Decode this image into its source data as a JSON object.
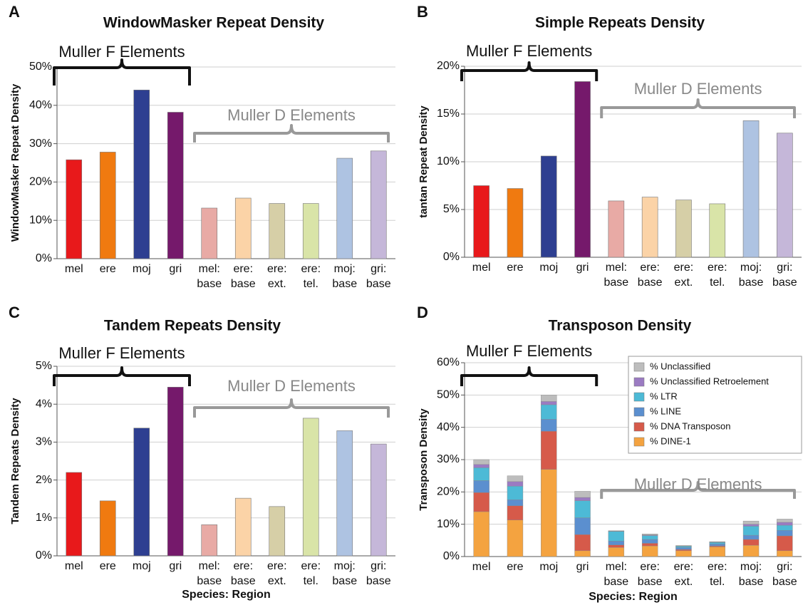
{
  "chart_data": [
    {
      "type": "bar",
      "label": "A",
      "title": "WindowMasker Repeat Density",
      "ylabel": "WindowMasker Repeat Density",
      "annotations": [
        "Muller F Elements",
        "Muller D Elements"
      ],
      "categories": [
        [
          "mel"
        ],
        [
          "ere"
        ],
        [
          "moj"
        ],
        [
          "gri"
        ],
        [
          "mel:",
          "base"
        ],
        [
          "ere:",
          "base"
        ],
        [
          "ere:",
          "ext."
        ],
        [
          "ere:",
          "tel."
        ],
        [
          "moj:",
          "base"
        ],
        [
          "gri:",
          "base"
        ]
      ],
      "values": [
        25.8,
        27.8,
        44,
        38.2,
        13.2,
        15.8,
        14.4,
        14.4,
        26.2,
        28.1
      ],
      "colors": [
        "#e8191b",
        "#f07a10",
        "#2e3f91",
        "#75196b",
        "#e8aaa5",
        "#fbd3a7",
        "#d6cfa7",
        "#d9e4a8",
        "#aec3e2",
        "#c5b7d9"
      ],
      "ylim": [
        0,
        50
      ],
      "yticks": [
        {
          "value": 0,
          "label": "0%"
        },
        {
          "value": 10,
          "label": "10%"
        },
        {
          "value": 20,
          "label": "20%"
        },
        {
          "value": 30,
          "label": "30%"
        },
        {
          "value": 40,
          "label": "40%"
        },
        {
          "value": 50,
          "label": "50%"
        }
      ],
      "grid": true
    },
    {
      "type": "bar",
      "label": "B",
      "title": "Simple Repeats Density",
      "ylabel": "tantan Repeat Density",
      "annotations": [
        "Muller F Elements",
        "Muller D Elements"
      ],
      "categories": [
        [
          "mel"
        ],
        [
          "ere"
        ],
        [
          "moj"
        ],
        [
          "gri"
        ],
        [
          "mel:",
          "base"
        ],
        [
          "ere:",
          "base"
        ],
        [
          "ere:",
          "ext."
        ],
        [
          "ere:",
          "tel."
        ],
        [
          "moj:",
          "base"
        ],
        [
          "gri:",
          "base"
        ]
      ],
      "values": [
        7.5,
        7.2,
        10.6,
        18.4,
        5.9,
        6.3,
        6.0,
        5.6,
        14.3,
        13.0
      ],
      "colors": [
        "#e8191b",
        "#f07a10",
        "#2e3f91",
        "#75196b",
        "#e8aaa5",
        "#fbd3a7",
        "#d6cfa7",
        "#d9e4a8",
        "#aec3e2",
        "#c5b7d9"
      ],
      "ylim": [
        0,
        20
      ],
      "yticks": [
        {
          "value": 0,
          "label": "0%"
        },
        {
          "value": 5,
          "label": "5%"
        },
        {
          "value": 10,
          "label": "10%"
        },
        {
          "value": 15,
          "label": "15%"
        },
        {
          "value": 20,
          "label": "20%"
        }
      ],
      "grid": true
    },
    {
      "type": "bar",
      "label": "C",
      "title": "Tandem Repeats Density",
      "ylabel": "Tandem Repeats Density",
      "xlabel": "Species: Region",
      "annotations": [
        "Muller F Elements",
        "Muller D Elements"
      ],
      "categories": [
        [
          "mel"
        ],
        [
          "ere"
        ],
        [
          "moj"
        ],
        [
          "gri"
        ],
        [
          "mel:",
          "base"
        ],
        [
          "ere:",
          "base"
        ],
        [
          "ere:",
          "ext."
        ],
        [
          "ere:",
          "tel."
        ],
        [
          "moj:",
          "base"
        ],
        [
          "gri:",
          "base"
        ]
      ],
      "values": [
        2.2,
        1.45,
        3.37,
        4.45,
        0.82,
        1.52,
        1.3,
        3.63,
        3.3,
        2.95
      ],
      "colors": [
        "#e8191b",
        "#f07a10",
        "#2e3f91",
        "#75196b",
        "#e8aaa5",
        "#fbd3a7",
        "#d6cfa7",
        "#d9e4a8",
        "#aec3e2",
        "#c5b7d9"
      ],
      "ylim": [
        0,
        5
      ],
      "yticks": [
        {
          "value": 0,
          "label": "0%"
        },
        {
          "value": 1,
          "label": "1%"
        },
        {
          "value": 2,
          "label": "2%"
        },
        {
          "value": 3,
          "label": "3%"
        },
        {
          "value": 4,
          "label": "4%"
        },
        {
          "value": 5,
          "label": "5%"
        }
      ],
      "grid": true
    },
    {
      "type": "stacked_bar",
      "label": "D",
      "title": "Transposon Density",
      "ylabel": "Transposon Density",
      "xlabel": "Species: Region",
      "annotations": [
        "Muller F Elements",
        "Muller D Elements"
      ],
      "categories": [
        [
          "mel"
        ],
        [
          "ere"
        ],
        [
          "moj"
        ],
        [
          "gri"
        ],
        [
          "mel:",
          "base"
        ],
        [
          "ere:",
          "base"
        ],
        [
          "ere:",
          "ext."
        ],
        [
          "ere:",
          "tel."
        ],
        [
          "moj:",
          "base"
        ],
        [
          "gri:",
          "base"
        ]
      ],
      "series": [
        {
          "name": "% DINE-1",
          "color": "#f4a340",
          "values": [
            13.9,
            11.3,
            27,
            1.8,
            2.8,
            3.3,
            1.8,
            3.0,
            3.5,
            1.8
          ]
        },
        {
          "name": "% DNA Transposon",
          "color": "#d65a4a",
          "values": [
            5.9,
            4.4,
            11.8,
            5.0,
            0.8,
            0.8,
            0.4,
            0.3,
            1.8,
            4.6
          ]
        },
        {
          "name": "% LINE",
          "color": "#5b8fcf",
          "values": [
            3.7,
            1.9,
            3.7,
            5.2,
            1.2,
            1.2,
            0.6,
            0.6,
            1.3,
            1.7
          ]
        },
        {
          "name": "% LTR",
          "color": "#4dbad6",
          "values": [
            4.0,
            4.2,
            4.5,
            5.3,
            3.0,
            1.2,
            0.4,
            0.5,
            2.8,
            1.6
          ]
        },
        {
          "name": "% Unclassified Retroelement",
          "color": "#9b7bc2",
          "values": [
            1.0,
            1.4,
            1.0,
            1.0,
            0.1,
            0.2,
            0.1,
            0.1,
            0.6,
            0.9
          ]
        },
        {
          "name": "% Unclassified",
          "color": "#bdbdbd",
          "values": [
            1.5,
            1.8,
            2.0,
            1.9,
            0.1,
            0.3,
            0.1,
            0.1,
            1.0,
            1.0
          ]
        }
      ],
      "ylim": [
        0,
        60
      ],
      "yticks": [
        {
          "value": 0,
          "label": "0%"
        },
        {
          "value": 10,
          "label": "10%"
        },
        {
          "value": 20,
          "label": "20%"
        },
        {
          "value": 30,
          "label": "30%"
        },
        {
          "value": 40,
          "label": "40%"
        },
        {
          "value": 50,
          "label": "50%"
        },
        {
          "value": 60,
          "label": "60%"
        }
      ],
      "grid": true,
      "legend": "upper right"
    }
  ]
}
